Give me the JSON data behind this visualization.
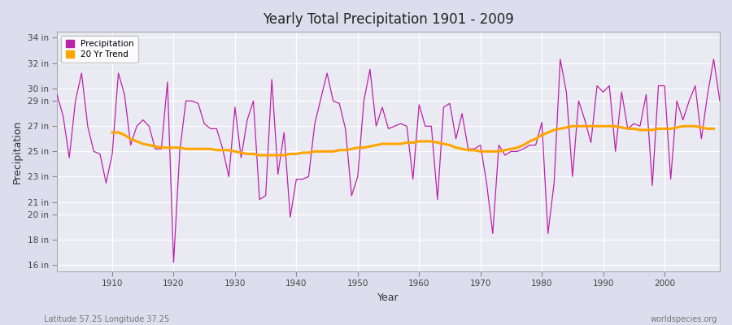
{
  "title": "Yearly Total Precipitation 1901 - 2009",
  "xlabel": "Year",
  "ylabel": "Precipitation",
  "subtitle_left": "Latitude 57.25 Longitude 37.25",
  "subtitle_right": "worldspecies.org",
  "precip_color": "#BB22AA",
  "trend_color": "#FFA500",
  "fig_bg_color": "#DDDDEE",
  "plot_bg_color": "#EAEAF2",
  "ylim": [
    15.5,
    34.5
  ],
  "yticks": [
    16,
    18,
    20,
    21,
    23,
    25,
    27,
    29,
    30,
    32,
    34
  ],
  "ytick_labels": [
    "16 in",
    "18 in",
    "20 in",
    "21 in",
    "23 in",
    "25 in",
    "27 in",
    "29 in",
    "30 in",
    "32 in",
    "34 in"
  ],
  "xticks": [
    1910,
    1920,
    1930,
    1940,
    1950,
    1960,
    1970,
    1980,
    1990,
    2000
  ],
  "years": [
    1901,
    1902,
    1903,
    1904,
    1905,
    1906,
    1907,
    1908,
    1909,
    1910,
    1911,
    1912,
    1913,
    1914,
    1915,
    1916,
    1917,
    1918,
    1919,
    1920,
    1921,
    1922,
    1923,
    1924,
    1925,
    1926,
    1927,
    1928,
    1929,
    1930,
    1931,
    1932,
    1933,
    1934,
    1935,
    1936,
    1937,
    1938,
    1939,
    1940,
    1941,
    1942,
    1943,
    1944,
    1945,
    1946,
    1947,
    1948,
    1949,
    1950,
    1951,
    1952,
    1953,
    1954,
    1955,
    1956,
    1957,
    1958,
    1959,
    1960,
    1961,
    1962,
    1963,
    1964,
    1965,
    1966,
    1967,
    1968,
    1969,
    1970,
    1971,
    1972,
    1973,
    1974,
    1975,
    1976,
    1977,
    1978,
    1979,
    1980,
    1981,
    1982,
    1983,
    1984,
    1985,
    1986,
    1987,
    1988,
    1989,
    1990,
    1991,
    1992,
    1993,
    1994,
    1995,
    1996,
    1997,
    1998,
    1999,
    2000,
    2001,
    2002,
    2003,
    2004,
    2005,
    2006,
    2007,
    2008,
    2009
  ],
  "precipitation": [
    29.5,
    27.8,
    24.5,
    29.0,
    31.2,
    27.0,
    25.0,
    24.8,
    22.5,
    24.8,
    31.2,
    29.5,
    25.5,
    27.0,
    27.5,
    27.0,
    25.2,
    25.2,
    30.5,
    16.2,
    25.0,
    29.0,
    29.0,
    28.8,
    27.2,
    26.8,
    26.8,
    25.2,
    23.0,
    28.5,
    24.5,
    27.5,
    29.0,
    21.2,
    21.5,
    30.7,
    23.2,
    26.5,
    19.8,
    22.8,
    22.8,
    23.0,
    27.2,
    29.2,
    31.2,
    29.0,
    28.8,
    26.8,
    21.5,
    23.0,
    29.0,
    31.5,
    27.0,
    28.5,
    26.8,
    27.0,
    27.2,
    27.0,
    22.8,
    28.7,
    27.0,
    27.0,
    21.2,
    28.5,
    28.8,
    26.0,
    28.0,
    25.2,
    25.2,
    25.5,
    22.5,
    18.5,
    25.5,
    24.7,
    25.0,
    25.0,
    25.2,
    25.5,
    25.5,
    27.3,
    18.5,
    22.5,
    32.3,
    29.7,
    23.0,
    29.0,
    27.5,
    25.7,
    30.2,
    29.7,
    30.2,
    25.0,
    29.7,
    26.8,
    27.2,
    27.0,
    29.5,
    22.3,
    30.2,
    30.2,
    22.8,
    29.0,
    27.5,
    29.0,
    30.2,
    26.0,
    29.5,
    32.3,
    29.0
  ],
  "trend": [
    null,
    null,
    null,
    null,
    null,
    null,
    null,
    null,
    null,
    26.5,
    26.5,
    26.3,
    26.0,
    25.8,
    25.6,
    25.5,
    25.4,
    25.3,
    25.3,
    25.3,
    25.3,
    25.2,
    25.2,
    25.2,
    25.2,
    25.2,
    25.1,
    25.1,
    25.1,
    25.0,
    24.9,
    24.8,
    24.8,
    24.7,
    24.7,
    24.7,
    24.7,
    24.7,
    24.8,
    24.8,
    24.9,
    24.9,
    25.0,
    25.0,
    25.0,
    25.0,
    25.1,
    25.1,
    25.2,
    25.3,
    25.3,
    25.4,
    25.5,
    25.6,
    25.6,
    25.6,
    25.6,
    25.7,
    25.7,
    25.8,
    25.8,
    25.8,
    25.7,
    25.6,
    25.5,
    25.3,
    25.2,
    25.1,
    25.1,
    25.0,
    25.0,
    25.0,
    25.0,
    25.1,
    25.2,
    25.3,
    25.5,
    25.8,
    26.0,
    26.3,
    26.5,
    26.7,
    26.8,
    26.9,
    27.0,
    27.0,
    27.0,
    27.0,
    27.0,
    27.0,
    27.0,
    27.0,
    26.9,
    26.8,
    26.8,
    26.7,
    26.7,
    26.7,
    26.8,
    26.8,
    26.8,
    26.9,
    27.0,
    27.0,
    27.0,
    26.9,
    26.8,
    26.8,
    null
  ]
}
